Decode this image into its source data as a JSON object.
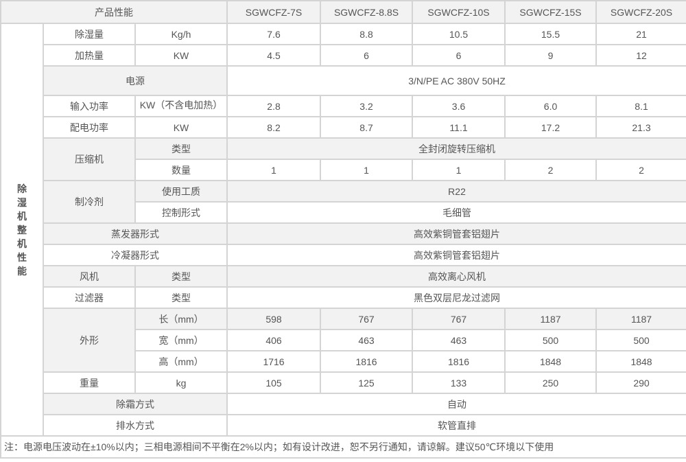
{
  "header": {
    "label": "产品性能",
    "models": [
      "SGWCFZ-7S",
      "SGWCFZ-8.8S",
      "SGWCFZ-10S",
      "SGWCFZ-15S",
      "SGWCFZ-20S"
    ]
  },
  "group_label": "除湿机整机性能",
  "rows": {
    "dehum": {
      "label": "除湿量",
      "unit": "Kg/h",
      "values": [
        "7.6",
        "8.8",
        "10.5",
        "15.5",
        "21"
      ]
    },
    "heat": {
      "label": "加热量",
      "unit": "KW",
      "values": [
        "4.5",
        "6",
        "6",
        "9",
        "12"
      ]
    },
    "power": {
      "label": "电源",
      "value": "3/N/PE AC 380V 50HZ"
    },
    "input": {
      "label": "输入功率",
      "unit": "KW（不含电加热）",
      "values": [
        "2.8",
        "3.2",
        "3.6",
        "6.0",
        "8.1"
      ]
    },
    "dist": {
      "label": "配电功率",
      "unit": "KW",
      "values": [
        "8.2",
        "8.7",
        "11.1",
        "17.2",
        "21.3"
      ]
    },
    "comp": {
      "label": "压缩机",
      "type_label": "类型",
      "type_value": "全封闭旋转压缩机",
      "qty_label": "数量",
      "qty_values": [
        "1",
        "1",
        "1",
        "2",
        "2"
      ]
    },
    "refr": {
      "label": "制冷剂",
      "medium_label": "使用工质",
      "medium_value": "R22",
      "ctrl_label": "控制形式",
      "ctrl_value": "毛细管"
    },
    "evap": {
      "label": "蒸发器形式",
      "value": "高效紫铜管套铝翅片"
    },
    "cond": {
      "label": "冷凝器形式",
      "value": "高效紫铜管套铝翅片"
    },
    "fan": {
      "label": "风机",
      "sub": "类型",
      "value": "高效离心风机"
    },
    "filter": {
      "label": "过滤器",
      "sub": "类型",
      "value": "黑色双层尼龙过滤网"
    },
    "shape": {
      "label": "外形",
      "length_label": "长（mm）",
      "length": [
        "598",
        "767",
        "767",
        "1187",
        "1187"
      ],
      "width_label": "宽（mm）",
      "width": [
        "406",
        "463",
        "463",
        "500",
        "500"
      ],
      "height_label": "高（mm）",
      "height": [
        "1716",
        "1816",
        "1816",
        "1848",
        "1848"
      ]
    },
    "weight": {
      "label": "重量",
      "unit": "kg",
      "values": [
        "105",
        "125",
        "133",
        "250",
        "290"
      ]
    },
    "defrost": {
      "label": "除霜方式",
      "value": "自动"
    },
    "drain": {
      "label": "排水方式",
      "value": "软管直排"
    }
  },
  "note": "注：电源电压波动在±10%以内；三相电源相间不平衡在2%以内；如有设计改进，恕不另行通知，请谅解。建议50℃环境以下使用"
}
